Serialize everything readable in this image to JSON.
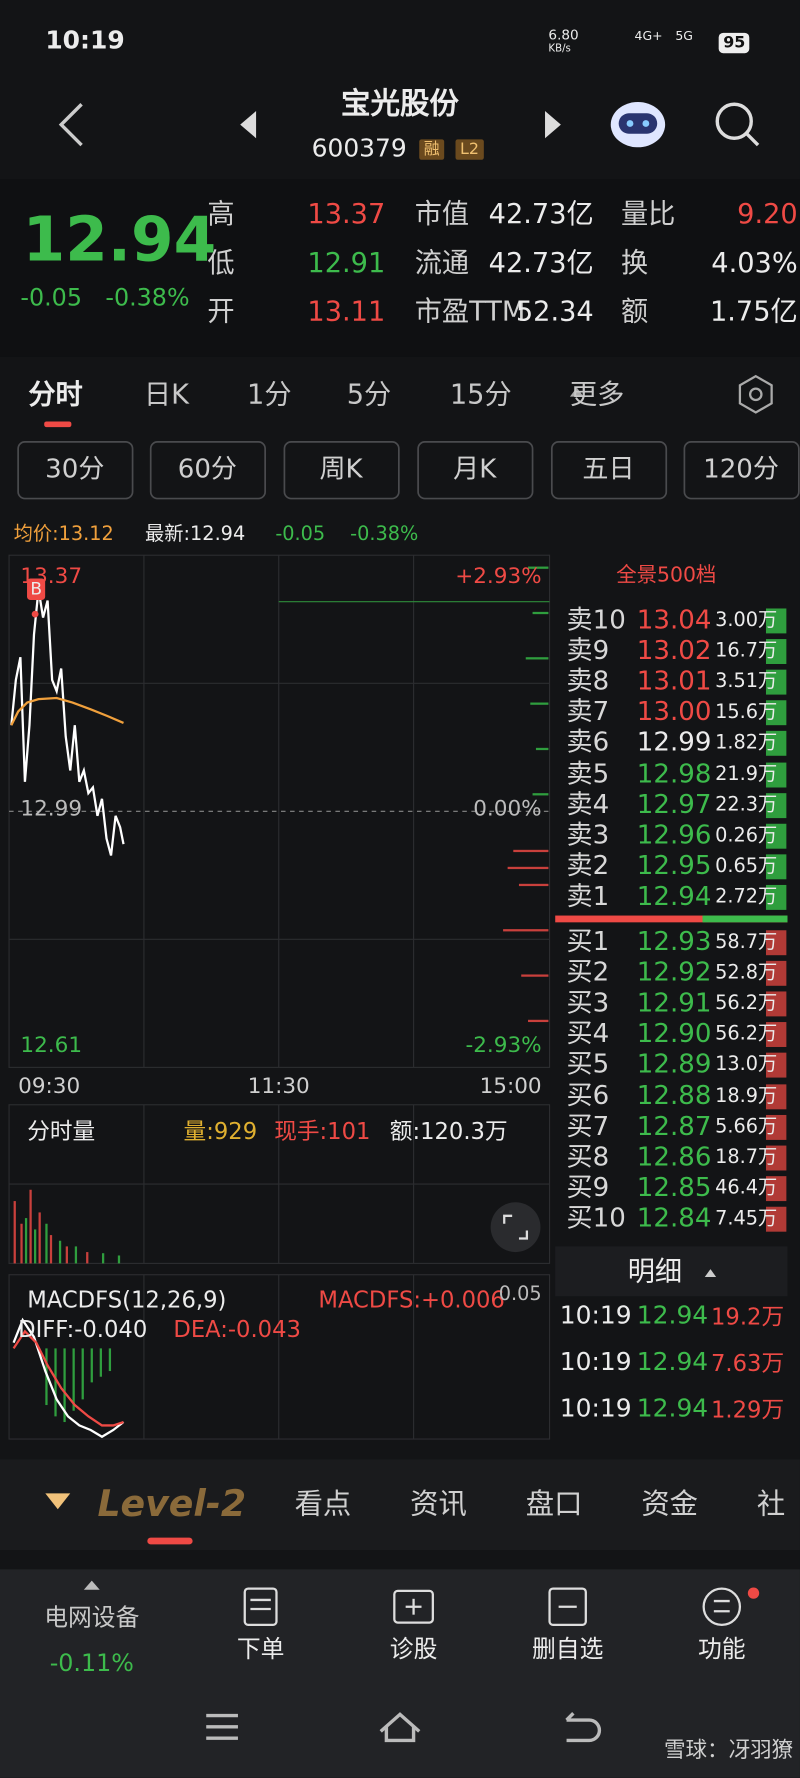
{
  "status": {
    "time": "10:19",
    "speed": "6.80",
    "speed_unit": "KB/s",
    "network": "4G+",
    "network2": "5G",
    "battery": "95"
  },
  "header": {
    "title": "宝光股份",
    "code": "600379",
    "badges": [
      "融",
      "L2"
    ]
  },
  "quote": {
    "price": "12.94",
    "change": "-0.05",
    "percent": "-0.38%",
    "stats": [
      {
        "label": "高",
        "value": "13.37",
        "color": "red"
      },
      {
        "label": "低",
        "value": "12.91",
        "color": "green"
      },
      {
        "label": "开",
        "value": "13.11",
        "color": "red"
      },
      {
        "label": "市值",
        "value": "42.73亿",
        "color": "white"
      },
      {
        "label": "流通",
        "value": "42.73亿",
        "color": "white"
      },
      {
        "label": "市盈TTM",
        "value": "52.34",
        "color": "white"
      },
      {
        "label": "量比",
        "value": "9.20",
        "color": "red"
      },
      {
        "label": "换",
        "value": "4.03%",
        "color": "white"
      },
      {
        "label": "额",
        "value": "1.75亿",
        "color": "white"
      }
    ]
  },
  "tabs": [
    "分时",
    "日K",
    "1分",
    "5分",
    "15分",
    "更多"
  ],
  "subtabs": [
    "30分",
    "60分",
    "周K",
    "月K",
    "五日",
    "120分"
  ],
  "info": {
    "avg": "均价:13.12",
    "last": "最新:12.94",
    "change": "-0.05",
    "percent": "-0.38%"
  },
  "chart": {
    "high": "13.37",
    "high_pct": "+2.93%",
    "mid": "12.99",
    "mid_pct": "0.00%",
    "low": "12.61",
    "low_pct": "-2.93%",
    "marker": "B",
    "times": [
      "09:30",
      "11:30",
      "15:00"
    ]
  },
  "volume": {
    "selector": "分时量",
    "vol": "量:929",
    "hand": "现手:101",
    "amount": "额:120.3万"
  },
  "macd": {
    "selector": "MACDFS(12,26,9)",
    "macdfs": "MACDFS:+0.006",
    "diff": "DIFF:-0.040",
    "dea": "DEA:-0.043",
    "scale": "0.05"
  },
  "orderbook": {
    "title": "全景500档",
    "asks": [
      [
        "卖10",
        "13.04",
        "3.00万"
      ],
      [
        "卖9",
        "13.02",
        "16.7万"
      ],
      [
        "卖8",
        "13.01",
        "3.51万"
      ],
      [
        "卖7",
        "13.00",
        "15.6万"
      ],
      [
        "卖6",
        "12.99",
        "1.82万"
      ],
      [
        "卖5",
        "12.98",
        "21.9万"
      ],
      [
        "卖4",
        "12.97",
        "22.3万"
      ],
      [
        "卖3",
        "12.96",
        "0.26万"
      ],
      [
        "卖2",
        "12.95",
        "0.65万"
      ],
      [
        "卖1",
        "12.94",
        "2.72万"
      ]
    ],
    "bids": [
      [
        "买1",
        "12.93",
        "58.7万"
      ],
      [
        "买2",
        "12.92",
        "52.8万"
      ],
      [
        "买3",
        "12.91",
        "56.2万"
      ],
      [
        "买4",
        "12.90",
        "56.2万"
      ],
      [
        "买5",
        "12.89",
        "13.0万"
      ],
      [
        "买6",
        "12.88",
        "18.9万"
      ],
      [
        "买7",
        "12.87",
        "5.66万"
      ],
      [
        "买8",
        "12.86",
        "18.7万"
      ],
      [
        "买9",
        "12.85",
        "46.4万"
      ],
      [
        "买10",
        "12.84",
        "7.45万"
      ]
    ]
  },
  "details": {
    "title": "明细",
    "rows": [
      [
        "10:19",
        "12.94",
        "19.2万"
      ],
      [
        "10:19",
        "12.94",
        "7.63万"
      ],
      [
        "10:19",
        "12.94",
        "1.29万"
      ]
    ]
  },
  "bottom_tabs": [
    "Level-2",
    "看点",
    "资讯",
    "盘口",
    "资金",
    "社"
  ],
  "footer": {
    "sector": "电网设备",
    "sector_change": "-0.11%",
    "actions": [
      "下单",
      "诊股",
      "删自选",
      "功能"
    ]
  },
  "watermark": "雪球：冴羽獠"
}
